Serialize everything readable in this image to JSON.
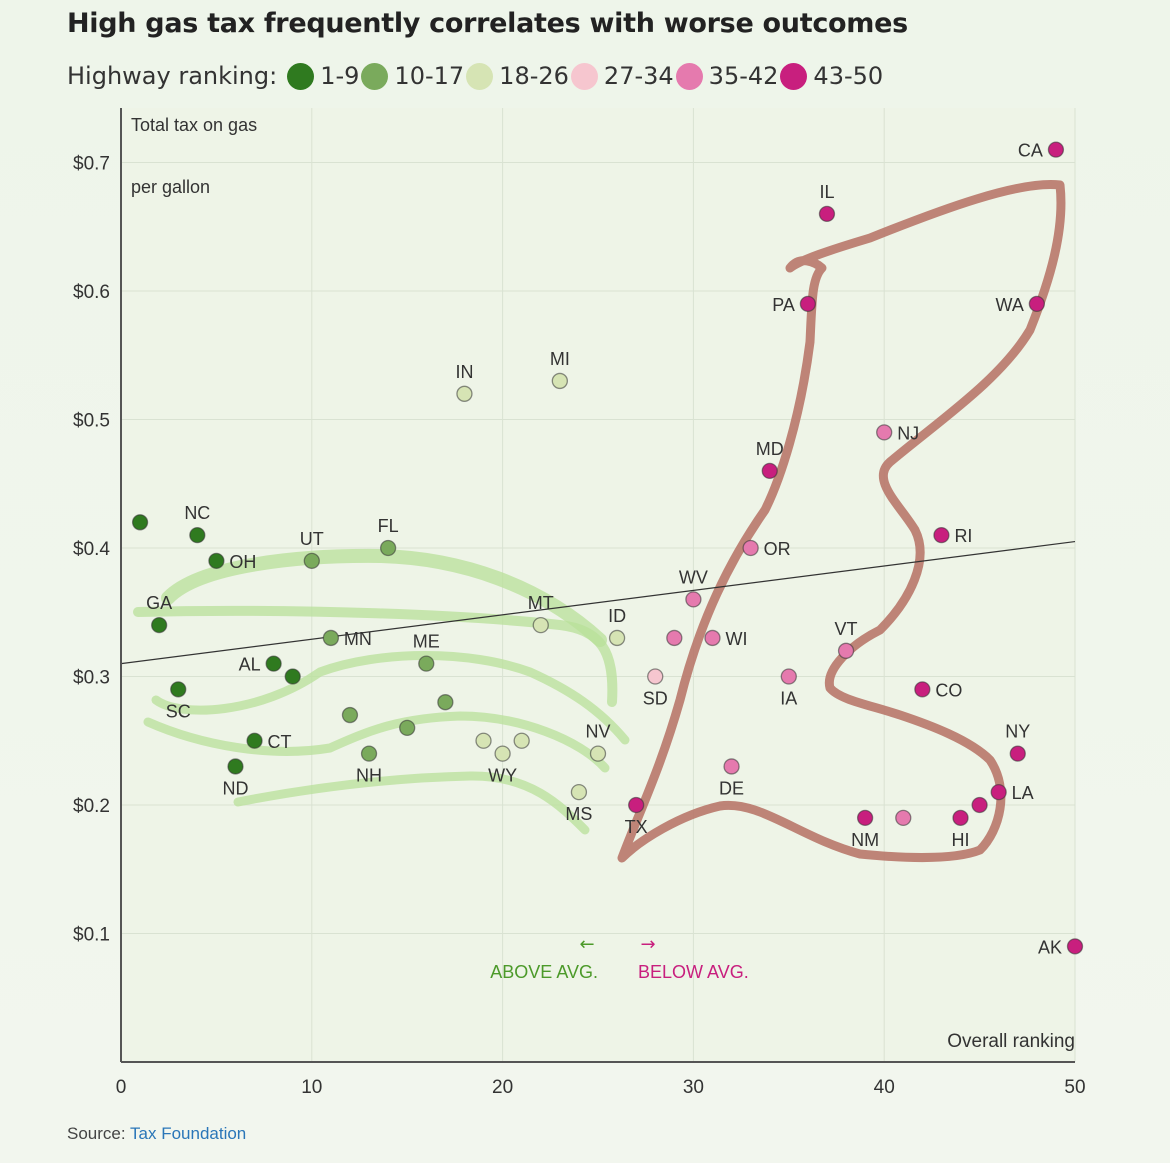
{
  "title": "High gas tax frequently correlates with worse outcomes",
  "legend": {
    "label": "Highway ranking:",
    "items": [
      {
        "label": "1-9",
        "color": "#2f7a1f"
      },
      {
        "label": "10-17",
        "color": "#7aaa5c"
      },
      {
        "label": "18-26",
        "color": "#d6e4b4"
      },
      {
        "label": "27-34",
        "color": "#f6c6cf"
      },
      {
        "label": "35-42",
        "color": "#e57aae"
      },
      {
        "label": "43-50",
        "color": "#c81f7e"
      }
    ]
  },
  "source": {
    "label": "Source:",
    "link": "Tax Foundation"
  },
  "annotations": {
    "above_arrow": "←",
    "above": "ABOVE AVG.",
    "below_arrow": "→",
    "below": "BELOW AVG."
  },
  "chart_data": {
    "type": "scatter",
    "title": "High gas tax frequently correlates with worse outcomes",
    "ylabel_line1": "Total tax on gas",
    "ylabel_line2": "per gallon",
    "xlabel": "Overall ranking",
    "xlim": [
      0,
      50
    ],
    "ylim": [
      0,
      0.75
    ],
    "xticks": [
      0,
      10,
      20,
      30,
      40,
      50
    ],
    "xtick_labels": [
      "0",
      "10",
      "20",
      "30",
      "40",
      "50"
    ],
    "yticks": [
      0.1,
      0.2,
      0.3,
      0.4,
      0.5,
      0.6,
      0.7
    ],
    "ytick_labels": [
      "$0.1",
      "$0.2",
      "$0.3",
      "$0.4",
      "$0.5",
      "$0.6",
      "$0.7"
    ],
    "grid": true,
    "trendline": [
      [
        0,
        0.31
      ],
      [
        50,
        0.405
      ]
    ],
    "points": [
      {
        "x": 1,
        "y": 0.42,
        "label": "",
        "color": "#2f7a1f"
      },
      {
        "x": 4,
        "y": 0.41,
        "label": "NC",
        "color": "#2f7a1f",
        "pos": "up"
      },
      {
        "x": 5,
        "y": 0.39,
        "label": "OH",
        "color": "#2f7a1f",
        "pos": "right"
      },
      {
        "x": 10,
        "y": 0.39,
        "label": "UT",
        "color": "#7aaa5c",
        "pos": "up"
      },
      {
        "x": 14,
        "y": 0.4,
        "label": "FL",
        "color": "#7aaa5c",
        "pos": "up"
      },
      {
        "x": 18,
        "y": 0.52,
        "label": "IN",
        "color": "#d6e4b4",
        "pos": "up"
      },
      {
        "x": 23,
        "y": 0.53,
        "label": "MI",
        "color": "#d6e4b4",
        "pos": "up"
      },
      {
        "x": 2,
        "y": 0.34,
        "label": "GA",
        "color": "#2f7a1f",
        "pos": "up"
      },
      {
        "x": 8,
        "y": 0.31,
        "label": "AL",
        "color": "#2f7a1f",
        "pos": "left"
      },
      {
        "x": 9,
        "y": 0.3,
        "label": "",
        "color": "#2f7a1f"
      },
      {
        "x": 11,
        "y": 0.33,
        "label": "MN",
        "color": "#7aaa5c",
        "pos": "right"
      },
      {
        "x": 16,
        "y": 0.31,
        "label": "ME",
        "color": "#7aaa5c",
        "pos": "up"
      },
      {
        "x": 22,
        "y": 0.34,
        "label": "MT",
        "color": "#d6e4b4",
        "pos": "up"
      },
      {
        "x": 26,
        "y": 0.33,
        "label": "ID",
        "color": "#d6e4b4",
        "pos": "up"
      },
      {
        "x": 3,
        "y": 0.29,
        "label": "SC",
        "color": "#2f7a1f",
        "pos": "down"
      },
      {
        "x": 7,
        "y": 0.25,
        "label": "CT",
        "color": "#2f7a1f",
        "pos": "right"
      },
      {
        "x": 6,
        "y": 0.23,
        "label": "ND",
        "color": "#2f7a1f",
        "pos": "down"
      },
      {
        "x": 12,
        "y": 0.27,
        "label": "",
        "color": "#7aaa5c"
      },
      {
        "x": 13,
        "y": 0.24,
        "label": "NH",
        "color": "#7aaa5c",
        "pos": "down"
      },
      {
        "x": 15,
        "y": 0.26,
        "label": "",
        "color": "#7aaa5c"
      },
      {
        "x": 17,
        "y": 0.28,
        "label": "",
        "color": "#7aaa5c"
      },
      {
        "x": 19,
        "y": 0.25,
        "label": "",
        "color": "#d6e4b4"
      },
      {
        "x": 20,
        "y": 0.24,
        "label": "WY",
        "color": "#d6e4b4",
        "pos": "down"
      },
      {
        "x": 21,
        "y": 0.25,
        "label": "",
        "color": "#d6e4b4"
      },
      {
        "x": 24,
        "y": 0.21,
        "label": "MS",
        "color": "#d6e4b4",
        "pos": "down"
      },
      {
        "x": 25,
        "y": 0.24,
        "label": "NV",
        "color": "#d6e4b4",
        "pos": "up"
      },
      {
        "x": 27,
        "y": 0.2,
        "label": "TX",
        "color": "#c81f7e",
        "pos": "down"
      },
      {
        "x": 28,
        "y": 0.3,
        "label": "SD",
        "color": "#f6c6cf",
        "pos": "down"
      },
      {
        "x": 29,
        "y": 0.33,
        "label": "",
        "color": "#e57aae"
      },
      {
        "x": 30,
        "y": 0.36,
        "label": "WV",
        "color": "#e57aae",
        "pos": "up"
      },
      {
        "x": 31,
        "y": 0.33,
        "label": "WI",
        "color": "#e57aae",
        "pos": "right"
      },
      {
        "x": 32,
        "y": 0.23,
        "label": "DE",
        "color": "#e57aae",
        "pos": "down"
      },
      {
        "x": 33,
        "y": 0.4,
        "label": "OR",
        "color": "#e57aae",
        "pos": "right"
      },
      {
        "x": 34,
        "y": 0.46,
        "label": "MD",
        "color": "#c81f7e",
        "pos": "up"
      },
      {
        "x": 35,
        "y": 0.3,
        "label": "IA",
        "color": "#e57aae",
        "pos": "down"
      },
      {
        "x": 36,
        "y": 0.59,
        "label": "PA",
        "color": "#c81f7e",
        "pos": "left"
      },
      {
        "x": 37,
        "y": 0.66,
        "label": "IL",
        "color": "#c81f7e",
        "pos": "up"
      },
      {
        "x": 38,
        "y": 0.32,
        "label": "VT",
        "color": "#e57aae",
        "pos": "up"
      },
      {
        "x": 39,
        "y": 0.19,
        "label": "NM",
        "color": "#c81f7e",
        "pos": "down"
      },
      {
        "x": 40,
        "y": 0.49,
        "label": "NJ",
        "color": "#e57aae",
        "pos": "right"
      },
      {
        "x": 41,
        "y": 0.19,
        "label": "",
        "color": "#e57aae"
      },
      {
        "x": 42,
        "y": 0.29,
        "label": "CO",
        "color": "#c81f7e",
        "pos": "right"
      },
      {
        "x": 43,
        "y": 0.41,
        "label": "RI",
        "color": "#c81f7e",
        "pos": "right"
      },
      {
        "x": 44,
        "y": 0.19,
        "label": "HI",
        "color": "#c81f7e",
        "pos": "down"
      },
      {
        "x": 45,
        "y": 0.2,
        "label": "",
        "color": "#c81f7e"
      },
      {
        "x": 46,
        "y": 0.21,
        "label": "LA",
        "color": "#c81f7e",
        "pos": "right"
      },
      {
        "x": 47,
        "y": 0.24,
        "label": "NY",
        "color": "#c81f7e",
        "pos": "up"
      },
      {
        "x": 48,
        "y": 0.59,
        "label": "WA",
        "color": "#c81f7e",
        "pos": "left"
      },
      {
        "x": 49,
        "y": 0.71,
        "label": "CA",
        "color": "#c81f7e",
        "pos": "left"
      },
      {
        "x": 50,
        "y": 0.09,
        "label": "AK",
        "color": "#c81f7e",
        "pos": "left"
      }
    ]
  }
}
